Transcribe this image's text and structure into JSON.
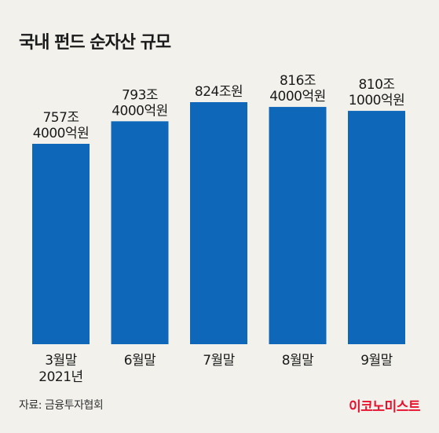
{
  "title": "국내 펀드 순자산 규모",
  "source": "자료: 금융투자협회",
  "brand": "이코노미스트",
  "colors": {
    "bar": "#0f67b9",
    "background": "#f2f1ec",
    "brand": "#e8112d"
  },
  "chart_data": {
    "type": "bar",
    "title": "국내 펀드 순자산 규모",
    "categories": [
      [
        "3월말",
        "2021년"
      ],
      [
        "6월말"
      ],
      [
        "7월말"
      ],
      [
        "8월말"
      ],
      [
        "9월말"
      ]
    ],
    "values": [
      757.4,
      793.4,
      824,
      816.4,
      810.1
    ],
    "value_unit": "조원",
    "data_labels": [
      [
        "757조",
        "4000억원"
      ],
      [
        "793조",
        "4000억원"
      ],
      [
        "824조원"
      ],
      [
        "816조",
        "4000억원"
      ],
      [
        "810조",
        "1000억원"
      ]
    ],
    "axis_visible": false,
    "grid": false,
    "legend": false
  }
}
